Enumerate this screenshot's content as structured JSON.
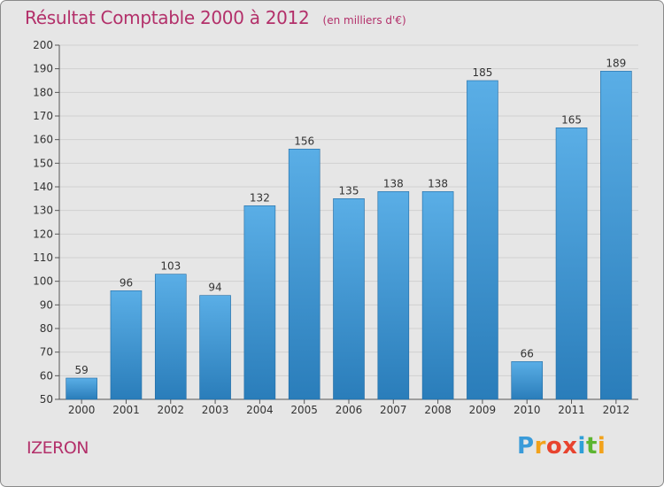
{
  "title": "Résultat Comptable 2000 à 2012",
  "subtitle": "(en milliers d'€)",
  "commune": "IZERON",
  "logo": {
    "text": "Proxiti",
    "letters": [
      "P",
      "r",
      "o",
      "x",
      "i",
      "t",
      "i"
    ],
    "colors": [
      "#3a9bd9",
      "#f2a21b",
      "#e8432e",
      "#e8432e",
      "#2f9fd8",
      "#5cb531",
      "#f2a21b"
    ]
  },
  "colors": {
    "bar_top": "#5aaee6",
    "bar_bottom": "#2a7dba",
    "title": "#b3306a",
    "axis": "#555555",
    "grid": "#d0d0d0"
  },
  "chart_data": {
    "type": "bar",
    "title": "Résultat Comptable 2000 à 2012",
    "subtitle": "(en milliers d'€)",
    "xlabel": "",
    "ylabel": "",
    "categories": [
      "2000",
      "2001",
      "2002",
      "2003",
      "2004",
      "2005",
      "2006",
      "2007",
      "2008",
      "2009",
      "2010",
      "2011",
      "2012"
    ],
    "values": [
      59,
      96,
      103,
      94,
      132,
      156,
      135,
      138,
      138,
      185,
      66,
      165,
      189
    ],
    "ylim": [
      50,
      200
    ],
    "yticks": [
      50,
      60,
      70,
      80,
      90,
      100,
      110,
      120,
      130,
      140,
      150,
      160,
      170,
      180,
      190,
      200
    ],
    "grid": true
  }
}
